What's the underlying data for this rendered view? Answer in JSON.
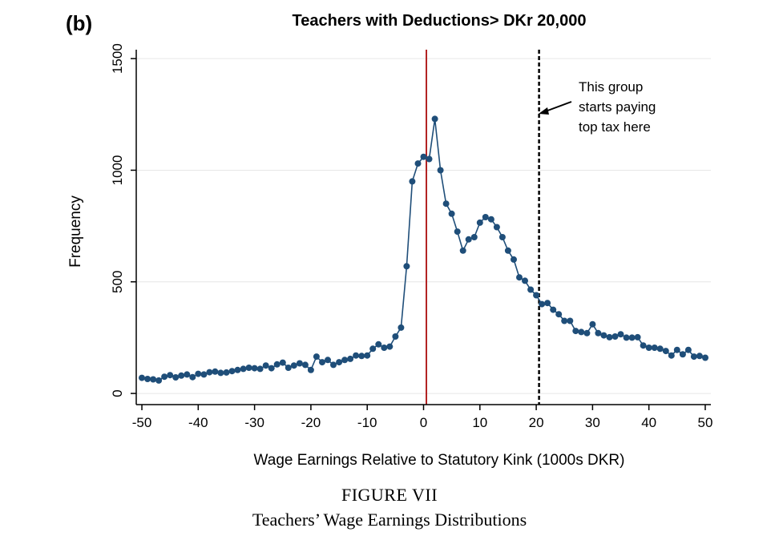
{
  "panel_label": "(b)",
  "figure": {
    "number_label": "FIGURE VII",
    "caption": "Teachers’ Wage Earnings Distributions"
  },
  "chart_data": {
    "type": "line",
    "title": "Teachers with Deductions> DKr 20,000",
    "xlabel": "Wage Earnings Relative to Statutory Kink (1000s DKR)",
    "ylabel": "Frequency",
    "xlim": [
      -51,
      51
    ],
    "ylim": [
      -50,
      1540
    ],
    "xticks": [
      -50,
      -40,
      -30,
      -20,
      -10,
      0,
      10,
      20,
      30,
      40,
      50
    ],
    "yticks": [
      0,
      500,
      1000,
      1500
    ],
    "grid": "horizontal",
    "legend": "none",
    "series": [
      {
        "x": [
          -50,
          -49,
          -48,
          -47,
          -46,
          -45,
          -44,
          -43,
          -42,
          -41,
          -40,
          -39,
          -38,
          -37,
          -36,
          -35,
          -34,
          -33,
          -32,
          -31,
          -30,
          -29,
          -28,
          -27,
          -26,
          -25,
          -24,
          -23,
          -22,
          -21,
          -20,
          -19,
          -18,
          -17,
          -16,
          -15,
          -14,
          -13,
          -12,
          -11,
          -10,
          -9,
          -8,
          -7,
          -6,
          -5,
          -4,
          -3,
          -2,
          -1,
          0,
          1,
          2,
          3,
          4,
          5,
          6,
          7,
          8,
          9,
          10,
          11,
          12,
          13,
          14,
          15,
          16,
          17,
          18,
          19,
          20,
          21,
          22,
          23,
          24,
          25,
          26,
          27,
          28,
          29,
          30,
          31,
          32,
          33,
          34,
          35,
          36,
          37,
          38,
          39,
          40,
          41,
          42,
          43,
          44,
          45,
          46,
          47,
          48,
          49,
          50
        ],
        "y": [
          70,
          65,
          63,
          58,
          75,
          82,
          72,
          80,
          85,
          73,
          88,
          85,
          95,
          98,
          92,
          94,
          100,
          105,
          110,
          115,
          113,
          110,
          125,
          113,
          130,
          138,
          115,
          125,
          135,
          128,
          105,
          165,
          140,
          150,
          128,
          140,
          150,
          155,
          170,
          168,
          170,
          200,
          220,
          205,
          210,
          255,
          295,
          570,
          950,
          1030,
          1060,
          1050,
          1230,
          1000,
          850,
          805,
          725,
          640,
          690,
          700,
          765,
          790,
          780,
          745,
          700,
          640,
          600,
          520,
          505,
          465,
          440,
          400,
          405,
          375,
          355,
          325,
          325,
          280,
          275,
          270,
          310,
          270,
          260,
          252,
          255,
          265,
          250,
          250,
          252,
          215,
          205,
          205,
          200,
          190,
          170,
          195,
          175,
          195,
          165,
          168,
          160
        ]
      }
    ],
    "reference_lines": [
      {
        "x": 0.5,
        "style": "solid",
        "color": "#b22222"
      },
      {
        "x": 20.5,
        "style": "dashed",
        "color": "#000000"
      }
    ],
    "annotation": {
      "lines": [
        "This group",
        "starts paying",
        "top tax here"
      ],
      "arrow_to_x": 20.5
    },
    "colors": {
      "series": "#1f4e79",
      "grid": "#e6e6e6"
    }
  }
}
